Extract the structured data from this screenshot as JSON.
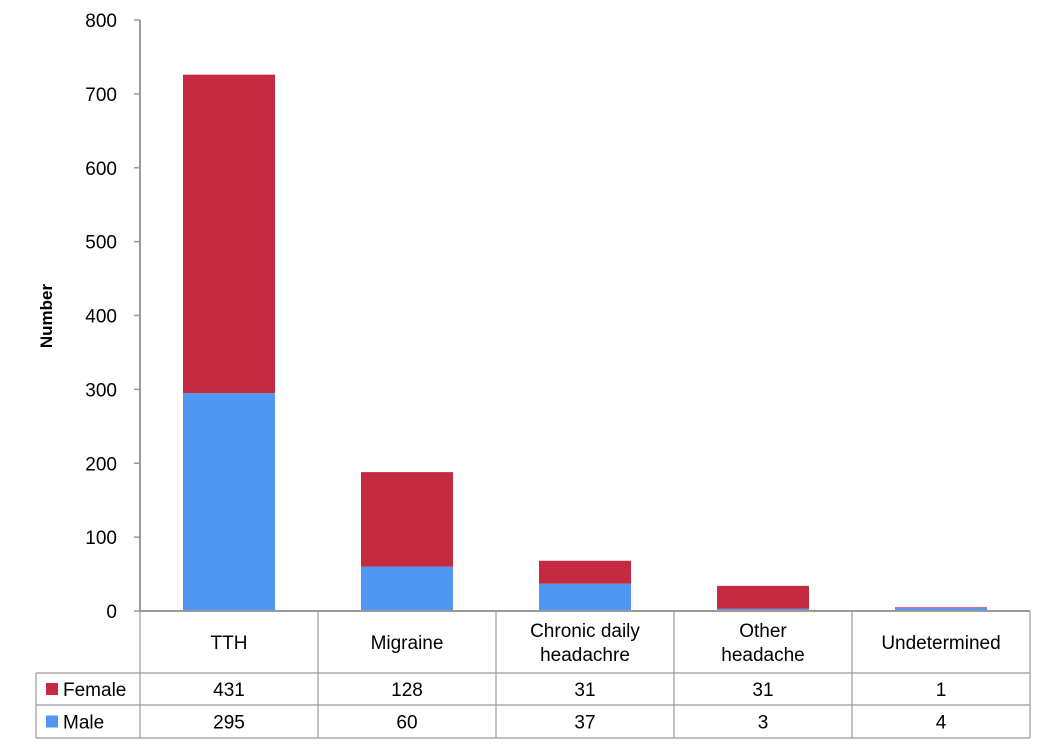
{
  "chart_data": {
    "type": "bar",
    "stacked": true,
    "title": "",
    "xlabel": "",
    "ylabel": "Number",
    "ylim": [
      0,
      800
    ],
    "yticks": [
      0,
      100,
      200,
      300,
      400,
      500,
      600,
      700,
      800
    ],
    "categories": [
      [
        "TTH"
      ],
      [
        "Migraine"
      ],
      [
        "Chronic daily",
        "headachre"
      ],
      [
        "Other",
        "headache"
      ],
      [
        "Undetermined"
      ]
    ],
    "series": [
      {
        "name": "Male",
        "values": [
          295,
          60,
          37,
          3,
          4
        ],
        "color": "#4f97f2"
      },
      {
        "name": "Female",
        "values": [
          431,
          128,
          31,
          31,
          1
        ],
        "color": "#c42b40"
      }
    ],
    "table_rows": [
      "Female",
      "Male"
    ],
    "grid": false,
    "legend": "data-table"
  }
}
